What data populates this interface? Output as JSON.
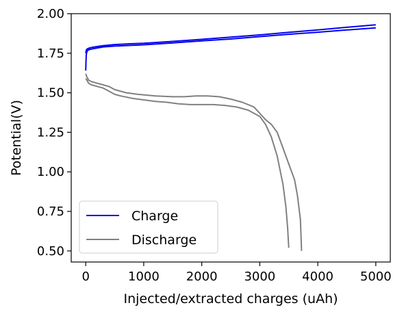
{
  "chart_data": {
    "type": "line",
    "xlabel": "Injected/extracted charges (uAh)",
    "ylabel": "Potential(V)",
    "xlim": [
      -250,
      5250
    ],
    "ylim": [
      0.43,
      2.0
    ],
    "xticks": [
      0,
      1000,
      2000,
      3000,
      4000,
      5000
    ],
    "yticks": [
      0.5,
      0.75,
      1.0,
      1.25,
      1.5,
      1.75,
      2.0
    ],
    "xtick_labels": [
      "0",
      "1000",
      "2000",
      "3000",
      "4000",
      "5000"
    ],
    "ytick_labels": [
      "0.50",
      "0.75",
      "1.00",
      "1.25",
      "1.50",
      "1.75",
      "2.00"
    ],
    "grid": false,
    "legend_position": "lower-left",
    "colors": {
      "Charge": "#0000ee",
      "Discharge": "#808080"
    },
    "series": [
      {
        "name": "Charge",
        "color": "#0000ee",
        "curves": [
          {
            "x": [
              0,
              5,
              10,
              20,
              40,
              80,
              150,
              300,
              500,
              800,
              1000,
              1500,
              2000,
              2500,
              3000,
              3500,
              4000,
              4500,
              5000
            ],
            "y": [
              1.64,
              1.7,
              1.74,
              1.76,
              1.77,
              1.775,
              1.78,
              1.79,
              1.795,
              1.8,
              1.803,
              1.815,
              1.828,
              1.84,
              1.855,
              1.87,
              1.883,
              1.897,
              1.91
            ]
          },
          {
            "x": [
              0,
              10,
              20,
              40,
              80,
              150,
              300,
              500,
              800,
              1000,
              1500,
              2000,
              2500,
              3000,
              3500,
              4000,
              4500,
              5000
            ],
            "y": [
              1.75,
              1.77,
              1.775,
              1.78,
              1.785,
              1.79,
              1.798,
              1.805,
              1.81,
              1.813,
              1.825,
              1.838,
              1.852,
              1.866,
              1.882,
              1.897,
              1.914,
              1.93
            ]
          }
        ]
      },
      {
        "name": "Discharge",
        "color": "#808080",
        "curves": [
          {
            "x": [
              0,
              20,
              50,
              100,
              200,
              300,
              400,
              500,
              600,
              800,
              1000,
              1200,
              1400,
              1600,
              1800,
              2000,
              2200,
              2400,
              2600,
              2800,
              3000,
              3100,
              3200,
              3300,
              3400,
              3450,
              3480,
              3500
            ],
            "y": [
              1.59,
              1.58,
              1.56,
              1.55,
              1.54,
              1.53,
              1.51,
              1.49,
              1.48,
              1.465,
              1.455,
              1.445,
              1.44,
              1.43,
              1.425,
              1.425,
              1.425,
              1.42,
              1.41,
              1.39,
              1.35,
              1.3,
              1.22,
              1.1,
              0.92,
              0.78,
              0.65,
              0.52
            ]
          },
          {
            "x": [
              0,
              20,
              50,
              100,
              200,
              300,
              400,
              500,
              700,
              900,
              1200,
              1500,
              1700,
              1900,
              2100,
              2300,
              2500,
              2700,
              2900,
              3000,
              3100,
              3200,
              3300,
              3400,
              3500,
              3600,
              3650,
              3700,
              3720
            ],
            "y": [
              1.62,
              1.6,
              1.58,
              1.57,
              1.56,
              1.55,
              1.54,
              1.52,
              1.5,
              1.49,
              1.48,
              1.475,
              1.475,
              1.48,
              1.48,
              1.475,
              1.46,
              1.44,
              1.41,
              1.37,
              1.33,
              1.3,
              1.25,
              1.15,
              1.05,
              0.95,
              0.85,
              0.7,
              0.5
            ]
          }
        ]
      }
    ]
  }
}
